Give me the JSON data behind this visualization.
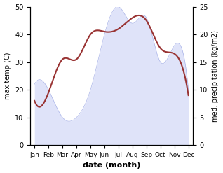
{
  "months": [
    "Jan",
    "Feb",
    "Mar",
    "Apr",
    "May",
    "Jun",
    "Jul",
    "Aug",
    "Sep",
    "Oct",
    "Nov",
    "Dec"
  ],
  "temperature": [
    16,
    19,
    31,
    31,
    40,
    41,
    42,
    46,
    45,
    35,
    33,
    18
  ],
  "precipitation": [
    11,
    10,
    5,
    5,
    10,
    20,
    25,
    22,
    23,
    15,
    18,
    10
  ],
  "temp_color": "#993333",
  "precip_fill_color": "#c5ccf5",
  "precip_line_color": "#aab4e8",
  "temp_ylim": [
    0,
    50
  ],
  "precip_ylim": [
    0,
    25
  ],
  "xlabel": "date (month)",
  "ylabel_left": "max temp (C)",
  "ylabel_right": "med. precipitation (kg/m2)",
  "figsize": [
    3.18,
    2.47
  ],
  "dpi": 100
}
